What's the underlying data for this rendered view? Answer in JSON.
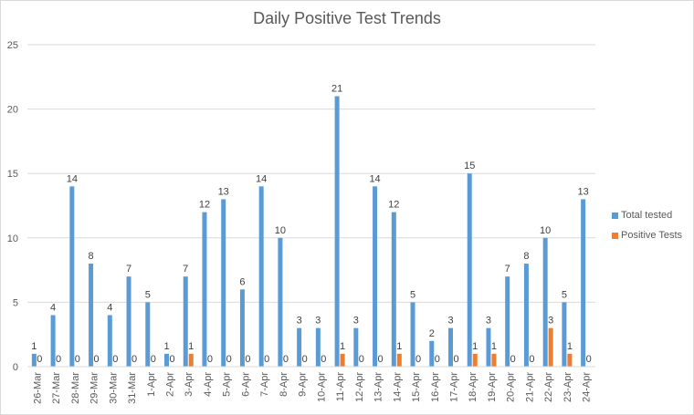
{
  "chart_data": {
    "type": "bar",
    "title": "Daily Positive Test Trends",
    "categories": [
      "26-Mar",
      "27-Mar",
      "28-Mar",
      "29-Mar",
      "30-Mar",
      "31-Mar",
      "1-Apr",
      "2-Apr",
      "3-Apr",
      "4-Apr",
      "5-Apr",
      "6-Apr",
      "7-Apr",
      "8-Apr",
      "9-Apr",
      "10-Apr",
      "11-Apr",
      "12-Apr",
      "13-Apr",
      "14-Apr",
      "15-Apr",
      "16-Apr",
      "17-Apr",
      "18-Apr",
      "19-Apr",
      "20-Apr",
      "21-Apr",
      "22-Apr",
      "23-Apr",
      "24-Apr"
    ],
    "series": [
      {
        "name": "Total tested",
        "color": "#5b9bd5",
        "values": [
          1,
          4,
          14,
          8,
          4,
          7,
          5,
          1,
          7,
          12,
          13,
          6,
          14,
          10,
          3,
          3,
          21,
          3,
          14,
          12,
          5,
          2,
          3,
          15,
          3,
          7,
          8,
          10,
          5,
          13
        ]
      },
      {
        "name": "Positive Tests",
        "color": "#ed7d31",
        "values": [
          0,
          0,
          0,
          0,
          0,
          0,
          0,
          0,
          1,
          0,
          0,
          0,
          0,
          0,
          0,
          0,
          1,
          0,
          0,
          1,
          0,
          0,
          0,
          1,
          1,
          0,
          0,
          3,
          1,
          0
        ]
      }
    ],
    "ylim": [
      0,
      25
    ],
    "yticks": [
      0,
      5,
      10,
      15,
      20,
      25
    ],
    "grid": true,
    "data_labels": true,
    "legend_position": "right"
  }
}
